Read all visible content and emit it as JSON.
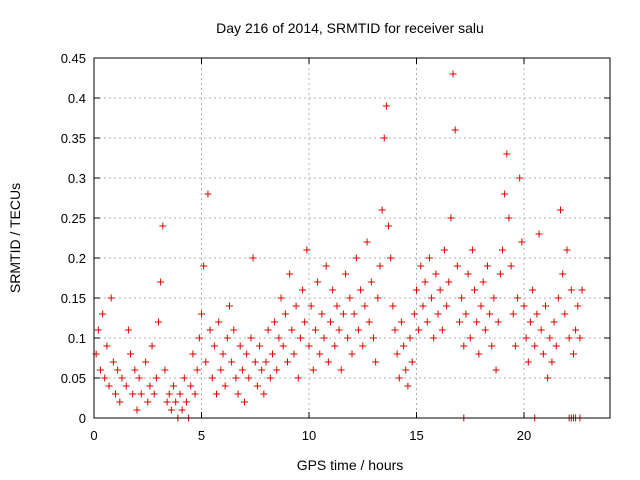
{
  "chart_data": {
    "type": "scatter",
    "title": "Day 216 of 2014, SRMTID for receiver salu",
    "xlabel": "GPS time / hours",
    "ylabel": "SRMTID / TECUs",
    "xlim": [
      0,
      24
    ],
    "ylim": [
      0,
      0.45
    ],
    "xticks": [
      0,
      5,
      10,
      15,
      20
    ],
    "xtick_labels": [
      "0",
      "5",
      "10",
      "15",
      "20"
    ],
    "yticks": [
      0,
      0.05,
      0.1,
      0.15,
      0.2,
      0.25,
      0.3,
      0.35,
      0.4,
      0.45
    ],
    "ytick_labels": [
      "0",
      "0.05",
      "0.1",
      "0.15",
      "0.2",
      "0.25",
      "0.3",
      "0.35",
      "0.4",
      "0.45"
    ],
    "grid": true,
    "marker": "plus",
    "color": "#e00000",
    "series": [
      {
        "name": "SRMTID",
        "points": [
          [
            0.1,
            0.08
          ],
          [
            0.2,
            0.11
          ],
          [
            0.3,
            0.06
          ],
          [
            0.4,
            0.13
          ],
          [
            0.5,
            0.05
          ],
          [
            0.6,
            0.09
          ],
          [
            0.7,
            0.04
          ],
          [
            0.8,
            0.15
          ],
          [
            0.9,
            0.07
          ],
          [
            1.0,
            0.03
          ],
          [
            1.1,
            0.06
          ],
          [
            1.2,
            0.02
          ],
          [
            1.3,
            0.05
          ],
          [
            1.5,
            0.04
          ],
          [
            1.6,
            0.11
          ],
          [
            1.7,
            0.08
          ],
          [
            1.8,
            0.03
          ],
          [
            1.9,
            0.06
          ],
          [
            2.0,
            0.01
          ],
          [
            2.1,
            0.05
          ],
          [
            2.2,
            0.03
          ],
          [
            2.4,
            0.07
          ],
          [
            2.5,
            0.02
          ],
          [
            2.6,
            0.04
          ],
          [
            2.7,
            0.09
          ],
          [
            2.8,
            0.03
          ],
          [
            2.9,
            0.05
          ],
          [
            3.0,
            0.12
          ],
          [
            3.1,
            0.17
          ],
          [
            3.2,
            0.24
          ],
          [
            3.3,
            0.06
          ],
          [
            3.4,
            0.02
          ],
          [
            3.5,
            0.03
          ],
          [
            3.6,
            0.01
          ],
          [
            3.7,
            0.04
          ],
          [
            3.8,
            0.02
          ],
          [
            3.9,
            0.0
          ],
          [
            4.0,
            0.03
          ],
          [
            4.1,
            0.01
          ],
          [
            4.2,
            0.05
          ],
          [
            4.3,
            0.02
          ],
          [
            4.4,
            0.0
          ],
          [
            4.5,
            0.04
          ],
          [
            4.6,
            0.08
          ],
          [
            4.7,
            0.03
          ],
          [
            4.8,
            0.06
          ],
          [
            4.9,
            0.1
          ],
          [
            5.0,
            0.13
          ],
          [
            5.1,
            0.19
          ],
          [
            5.2,
            0.07
          ],
          [
            5.3,
            0.28
          ],
          [
            5.4,
            0.11
          ],
          [
            5.5,
            0.05
          ],
          [
            5.6,
            0.09
          ],
          [
            5.7,
            0.03
          ],
          [
            5.8,
            0.12
          ],
          [
            5.9,
            0.06
          ],
          [
            6.0,
            0.08
          ],
          [
            6.1,
            0.04
          ],
          [
            6.2,
            0.1
          ],
          [
            6.3,
            0.14
          ],
          [
            6.4,
            0.07
          ],
          [
            6.5,
            0.11
          ],
          [
            6.6,
            0.05
          ],
          [
            6.7,
            0.03
          ],
          [
            6.8,
            0.09
          ],
          [
            6.9,
            0.06
          ],
          [
            7.0,
            0.02
          ],
          [
            7.1,
            0.08
          ],
          [
            7.2,
            0.05
          ],
          [
            7.3,
            0.1
          ],
          [
            7.4,
            0.2
          ],
          [
            7.5,
            0.07
          ],
          [
            7.6,
            0.04
          ],
          [
            7.7,
            0.09
          ],
          [
            7.8,
            0.06
          ],
          [
            7.9,
            0.03
          ],
          [
            8.0,
            0.07
          ],
          [
            8.1,
            0.11
          ],
          [
            8.2,
            0.05
          ],
          [
            8.3,
            0.08
          ],
          [
            8.4,
            0.12
          ],
          [
            8.5,
            0.06
          ],
          [
            8.6,
            0.1
          ],
          [
            8.7,
            0.15
          ],
          [
            8.8,
            0.09
          ],
          [
            8.9,
            0.13
          ],
          [
            9.0,
            0.07
          ],
          [
            9.1,
            0.18
          ],
          [
            9.2,
            0.11
          ],
          [
            9.3,
            0.08
          ],
          [
            9.4,
            0.14
          ],
          [
            9.5,
            0.05
          ],
          [
            9.6,
            0.1
          ],
          [
            9.7,
            0.16
          ],
          [
            9.8,
            0.12
          ],
          [
            9.9,
            0.21
          ],
          [
            10.0,
            0.09
          ],
          [
            10.1,
            0.14
          ],
          [
            10.2,
            0.06
          ],
          [
            10.3,
            0.11
          ],
          [
            10.4,
            0.17
          ],
          [
            10.5,
            0.08
          ],
          [
            10.6,
            0.13
          ],
          [
            10.7,
            0.1
          ],
          [
            10.8,
            0.19
          ],
          [
            10.9,
            0.07
          ],
          [
            11.0,
            0.12
          ],
          [
            11.1,
            0.16
          ],
          [
            11.2,
            0.09
          ],
          [
            11.3,
            0.14
          ],
          [
            11.4,
            0.11
          ],
          [
            11.5,
            0.06
          ],
          [
            11.6,
            0.13
          ],
          [
            11.7,
            0.18
          ],
          [
            11.8,
            0.1
          ],
          [
            11.9,
            0.15
          ],
          [
            12.0,
            0.08
          ],
          [
            12.1,
            0.13
          ],
          [
            12.2,
            0.2
          ],
          [
            12.3,
            0.11
          ],
          [
            12.4,
            0.16
          ],
          [
            12.5,
            0.09
          ],
          [
            12.6,
            0.14
          ],
          [
            12.7,
            0.22
          ],
          [
            12.8,
            0.12
          ],
          [
            12.9,
            0.17
          ],
          [
            13.0,
            0.1
          ],
          [
            13.1,
            0.07
          ],
          [
            13.2,
            0.15
          ],
          [
            13.3,
            0.19
          ],
          [
            13.4,
            0.26
          ],
          [
            13.5,
            0.35
          ],
          [
            13.6,
            0.39
          ],
          [
            13.7,
            0.24
          ],
          [
            13.8,
            0.2
          ],
          [
            13.9,
            0.14
          ],
          [
            14.0,
            0.11
          ],
          [
            14.1,
            0.08
          ],
          [
            14.2,
            0.05
          ],
          [
            14.3,
            0.12
          ],
          [
            14.4,
            0.09
          ],
          [
            14.5,
            0.06
          ],
          [
            14.6,
            0.04
          ],
          [
            14.7,
            0.1
          ],
          [
            14.8,
            0.07
          ],
          [
            14.9,
            0.13
          ],
          [
            15.0,
            0.16
          ],
          [
            15.1,
            0.11
          ],
          [
            15.2,
            0.19
          ],
          [
            15.3,
            0.14
          ],
          [
            15.4,
            0.17
          ],
          [
            15.5,
            0.12
          ],
          [
            15.6,
            0.2
          ],
          [
            15.7,
            0.15
          ],
          [
            15.8,
            0.1
          ],
          [
            15.9,
            0.18
          ],
          [
            16.0,
            0.13
          ],
          [
            16.1,
            0.16
          ],
          [
            16.2,
            0.11
          ],
          [
            16.3,
            0.21
          ],
          [
            16.4,
            0.14
          ],
          [
            16.5,
            0.17
          ],
          [
            16.6,
            0.25
          ],
          [
            16.7,
            0.43
          ],
          [
            16.8,
            0.36
          ],
          [
            16.9,
            0.19
          ],
          [
            17.0,
            0.12
          ],
          [
            17.1,
            0.15
          ],
          [
            17.2,
            0.09
          ],
          [
            17.3,
            0.13
          ],
          [
            17.4,
            0.18
          ],
          [
            17.5,
            0.1
          ],
          [
            17.6,
            0.21
          ],
          [
            17.7,
            0.16
          ],
          [
            17.8,
            0.12
          ],
          [
            17.9,
            0.08
          ],
          [
            18.0,
            0.14
          ],
          [
            18.1,
            0.17
          ],
          [
            18.2,
            0.11
          ],
          [
            18.3,
            0.19
          ],
          [
            18.4,
            0.13
          ],
          [
            18.5,
            0.09
          ],
          [
            18.6,
            0.15
          ],
          [
            18.7,
            0.06
          ],
          [
            18.8,
            0.12
          ],
          [
            18.9,
            0.18
          ],
          [
            19.0,
            0.21
          ],
          [
            19.1,
            0.28
          ],
          [
            19.2,
            0.33
          ],
          [
            19.3,
            0.25
          ],
          [
            19.4,
            0.19
          ],
          [
            19.5,
            0.13
          ],
          [
            19.6,
            0.09
          ],
          [
            19.7,
            0.15
          ],
          [
            19.8,
            0.3
          ],
          [
            19.9,
            0.22
          ],
          [
            20.0,
            0.14
          ],
          [
            20.1,
            0.1
          ],
          [
            20.2,
            0.07
          ],
          [
            20.3,
            0.12
          ],
          [
            20.4,
            0.16
          ],
          [
            20.5,
            0.09
          ],
          [
            20.6,
            0.13
          ],
          [
            20.7,
            0.23
          ],
          [
            20.8,
            0.11
          ],
          [
            20.9,
            0.08
          ],
          [
            21.0,
            0.14
          ],
          [
            21.1,
            0.05
          ],
          [
            21.2,
            0.1
          ],
          [
            21.3,
            0.07
          ],
          [
            21.4,
            0.12
          ],
          [
            21.5,
            0.09
          ],
          [
            21.6,
            0.15
          ],
          [
            21.7,
            0.26
          ],
          [
            21.8,
            0.18
          ],
          [
            21.9,
            0.13
          ],
          [
            22.0,
            0.21
          ],
          [
            22.1,
            0.1
          ],
          [
            22.2,
            0.16
          ],
          [
            22.3,
            0.08
          ],
          [
            22.4,
            0.11
          ],
          [
            22.5,
            0.14
          ],
          [
            22.6,
            0.1
          ],
          [
            22.7,
            0.16
          ],
          [
            17.2,
            0.0
          ],
          [
            20.5,
            0.0
          ],
          [
            22.1,
            0.0
          ],
          [
            22.2,
            0.0
          ],
          [
            22.3,
            0.0
          ],
          [
            22.4,
            0.0
          ],
          [
            22.6,
            0.0
          ]
        ]
      }
    ]
  }
}
